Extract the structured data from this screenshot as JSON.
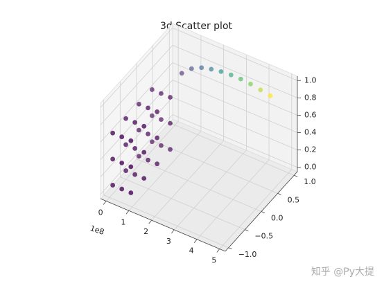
{
  "chart_data": {
    "type": "scatter3d",
    "title": "3d Scatter plot",
    "x_offset_label": "1e8",
    "watermark": "知乎 @Py大提",
    "colormap": "viridis",
    "xlim": [
      -0.25,
      5.25
    ],
    "ylim": [
      -1.1,
      1.1
    ],
    "zlim": [
      -0.05,
      1.05
    ],
    "xticks": [
      0,
      1,
      2,
      3,
      4,
      5
    ],
    "yticks": [
      {
        "value": -1,
        "label": "−1.0"
      },
      {
        "value": -0.5,
        "label": "−0.5"
      },
      {
        "value": 0,
        "label": "0.0"
      },
      {
        "value": 0.5,
        "label": "0.5"
      },
      {
        "value": 1,
        "label": "1.0"
      }
    ],
    "zticks": [
      {
        "value": 0,
        "label": "0.0"
      },
      {
        "value": 0.2,
        "label": "0.2"
      },
      {
        "value": 0.4,
        "label": "0.4"
      },
      {
        "value": 0.6,
        "label": "0.6"
      },
      {
        "value": 0.8,
        "label": "0.8"
      },
      {
        "value": 1,
        "label": "1.0"
      }
    ],
    "grid": true,
    "series": [
      {
        "x": [
          0,
          0,
          0,
          0,
          0.4,
          0.4,
          0.4,
          0.4,
          0.8,
          0.8,
          0.8,
          0.8,
          0,
          0,
          0,
          0,
          0.4,
          0.4,
          0.4,
          0.4,
          0.8,
          0.8,
          0.8,
          0.8,
          0,
          0,
          0,
          0,
          0.4,
          0.4,
          0.4,
          0.4,
          0.8,
          0.8,
          0.8,
          0.8,
          0.3,
          0.73,
          1.17,
          1.6,
          2.03,
          2.47,
          2.9,
          3.33,
          3.77,
          4.2
        ],
        "y": [
          -0.9,
          -0.5,
          -0.1,
          0.3,
          -0.9,
          -0.5,
          -0.1,
          0.3,
          -0.9,
          -0.5,
          -0.1,
          0.3,
          -0.9,
          -0.5,
          -0.1,
          0.3,
          -0.9,
          -0.5,
          -0.1,
          0.3,
          -0.9,
          -0.5,
          -0.1,
          0.3,
          -0.9,
          -0.5,
          -0.1,
          0.3,
          -0.9,
          -0.5,
          -0.1,
          0.3,
          -0.9,
          -0.5,
          -0.1,
          0.3,
          1,
          1,
          1,
          1,
          1,
          1,
          1,
          1,
          1,
          1
        ],
        "z": [
          0.05,
          0.05,
          0.05,
          0.05,
          0.05,
          0.05,
          0.05,
          0.05,
          0.05,
          0.05,
          0.05,
          0.05,
          0.35,
          0.35,
          0.35,
          0.35,
          0.35,
          0.35,
          0.35,
          0.35,
          0.35,
          0.35,
          0.35,
          0.35,
          0.65,
          0.65,
          0.65,
          0.65,
          0.65,
          0.65,
          0.65,
          0.65,
          0.65,
          0.65,
          0.65,
          0.65,
          0.58,
          0.68,
          0.74,
          0.77,
          0.79,
          0.8,
          0.8,
          0.79,
          0.77,
          0.75
        ],
        "c": [
          0,
          0,
          0,
          0,
          0,
          0,
          0,
          0,
          0,
          0,
          0,
          0,
          0,
          0,
          0,
          0,
          0,
          0,
          0,
          0,
          0,
          0,
          0,
          0,
          0,
          0,
          0,
          0,
          0,
          0,
          0,
          0,
          0,
          0,
          0,
          0,
          0.1,
          0.2,
          0.3,
          0.4,
          0.5,
          0.6,
          0.7,
          0.8,
          0.9,
          1
        ]
      }
    ]
  }
}
